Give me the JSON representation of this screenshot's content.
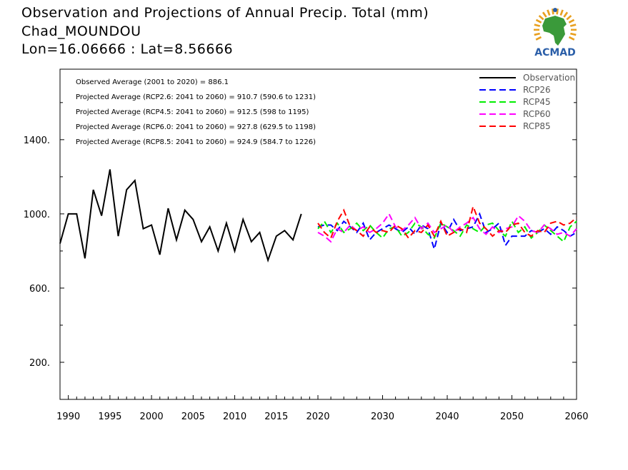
{
  "titles": {
    "line1": "Observation and Projections of Annual Precip. Total (mm)",
    "line2": "Chad_MOUNDOU",
    "line3": "Lon=16.06666 : Lat=8.56666"
  },
  "logo": {
    "text": "ACMAD",
    "brand_color": "#2a5ea8",
    "africa_color": "#3a9a3a",
    "sun_color": "#e8a020"
  },
  "annotations": [
    "Observed Average (2001 to 2020) = 886.1",
    "Projected Average (RCP2.6: 2041 to 2060) = 910.7 (590.6 to 1231)",
    "Projected Average (RCP4.5: 2041 to 2060) = 912.5 (598 to 1195)",
    "Projected Average (RCP6.0: 2041 to 2060) = 927.8 (629.5 to 1198)",
    "Projected Average (RCP8.5: 2041 to 2060) = 924.9 (584.7 to 1226)"
  ],
  "chart_data": {
    "type": "line",
    "title": "",
    "xlabel": "",
    "ylabel": "",
    "xlim": [
      1989,
      2060
    ],
    "ylim": [
      0,
      1780
    ],
    "y_ticks": [
      200,
      600,
      1000,
      1400
    ],
    "y_tick_labels": [
      "200.",
      "600.",
      "1000.",
      "1400."
    ],
    "x_ticks_left": [
      1990,
      1995,
      2000,
      2005,
      2010,
      2015,
      2020
    ],
    "x_ticks_right": [
      2030,
      2040,
      2050,
      2060
    ],
    "grid": false,
    "legend_position": "top-right",
    "series": [
      {
        "name": "Observation",
        "color": "#000000",
        "dash": "solid",
        "x": [
          1989,
          1990,
          1991,
          1992,
          1993,
          1994,
          1995,
          1996,
          1997,
          1998,
          1999,
          2000,
          2001,
          2002,
          2003,
          2004,
          2005,
          2006,
          2007,
          2008,
          2009,
          2010,
          2011,
          2012,
          2013,
          2014,
          2015,
          2016,
          2017,
          2018,
          2019,
          2020
        ],
        "y": [
          840,
          1000,
          1000,
          760,
          1130,
          990,
          1240,
          880,
          1130,
          1180,
          920,
          940,
          780,
          1030,
          860,
          1020,
          970,
          850,
          930,
          800,
          950,
          800,
          970,
          850,
          900,
          750,
          880,
          910,
          860,
          1000,
          null,
          null
        ]
      },
      {
        "name": "RCP26",
        "color": "#0000ff",
        "dash": "dashed",
        "x": [
          2020,
          2021,
          2022,
          2023,
          2024,
          2025,
          2026,
          2027,
          2028,
          2029,
          2030,
          2031,
          2032,
          2033,
          2034,
          2035,
          2036,
          2037,
          2038,
          2039,
          2040,
          2041,
          2042,
          2043,
          2044,
          2045,
          2046,
          2047,
          2048,
          2049,
          2050,
          2051,
          2052,
          2053,
          2054,
          2055,
          2056,
          2057,
          2058,
          2059,
          2060
        ],
        "y": [
          930,
          940,
          940,
          910,
          960,
          930,
          900,
          950,
          860,
          900,
          920,
          940,
          920,
          900,
          930,
          890,
          940,
          920,
          810,
          950,
          900,
          970,
          910,
          920,
          930,
          1000,
          900,
          920,
          950,
          830,
          880,
          880,
          880,
          910,
          900,
          920,
          890,
          930,
          910,
          880,
          900
        ]
      },
      {
        "name": "RCP45",
        "color": "#00ee00",
        "dash": "dashed",
        "x": [
          2020,
          2021,
          2022,
          2023,
          2024,
          2025,
          2026,
          2027,
          2028,
          2029,
          2030,
          2031,
          2032,
          2033,
          2034,
          2035,
          2036,
          2037,
          2038,
          2039,
          2040,
          2041,
          2042,
          2043,
          2044,
          2045,
          2046,
          2047,
          2048,
          2049,
          2050,
          2051,
          2052,
          2053,
          2054,
          2055,
          2056,
          2057,
          2058,
          2059,
          2060
        ],
        "y": [
          920,
          960,
          900,
          950,
          900,
          920,
          950,
          910,
          940,
          900,
          870,
          920,
          930,
          880,
          900,
          950,
          930,
          890,
          870,
          950,
          930,
          910,
          880,
          940,
          920,
          900,
          940,
          950,
          910,
          880,
          960,
          900,
          930,
          870,
          900,
          940,
          910,
          880,
          850,
          930,
          960
        ]
      },
      {
        "name": "RCP60",
        "color": "#ff00ff",
        "dash": "dashed",
        "x": [
          2020,
          2021,
          2022,
          2023,
          2024,
          2025,
          2026,
          2027,
          2028,
          2029,
          2030,
          2031,
          2032,
          2033,
          2034,
          2035,
          2036,
          2037,
          2038,
          2039,
          2040,
          2041,
          2042,
          2043,
          2044,
          2045,
          2046,
          2047,
          2048,
          2049,
          2050,
          2051,
          2052,
          2053,
          2054,
          2055,
          2056,
          2057,
          2058,
          2059,
          2060
        ],
        "y": [
          900,
          880,
          850,
          920,
          900,
          940,
          910,
          930,
          900,
          920,
          950,
          1000,
          930,
          910,
          940,
          980,
          920,
          950,
          900,
          920,
          940,
          900,
          930,
          950,
          980,
          920,
          890,
          930,
          900,
          920,
          930,
          990,
          960,
          910,
          900,
          940,
          920,
          890,
          900,
          880,
          920
        ]
      },
      {
        "name": "RCP85",
        "color": "#ff0000",
        "dash": "dashed",
        "x": [
          2020,
          2021,
          2022,
          2023,
          2024,
          2025,
          2026,
          2027,
          2028,
          2029,
          2030,
          2031,
          2032,
          2033,
          2034,
          2035,
          2036,
          2037,
          2038,
          2039,
          2040,
          2041,
          2042,
          2043,
          2044,
          2045,
          2046,
          2047,
          2048,
          2049,
          2050,
          2051,
          2052,
          2053,
          2054,
          2055,
          2056,
          2057,
          2058,
          2059,
          2060
        ],
        "y": [
          950,
          900,
          870,
          960,
          1020,
          930,
          910,
          880,
          930,
          900,
          910,
          900,
          940,
          920,
          870,
          910,
          900,
          940,
          880,
          960,
          880,
          900,
          920,
          900,
          1040,
          950,
          920,
          880,
          910,
          900,
          940,
          950,
          900,
          880,
          910,
          900,
          950,
          960,
          940,
          950,
          980
        ]
      }
    ]
  }
}
